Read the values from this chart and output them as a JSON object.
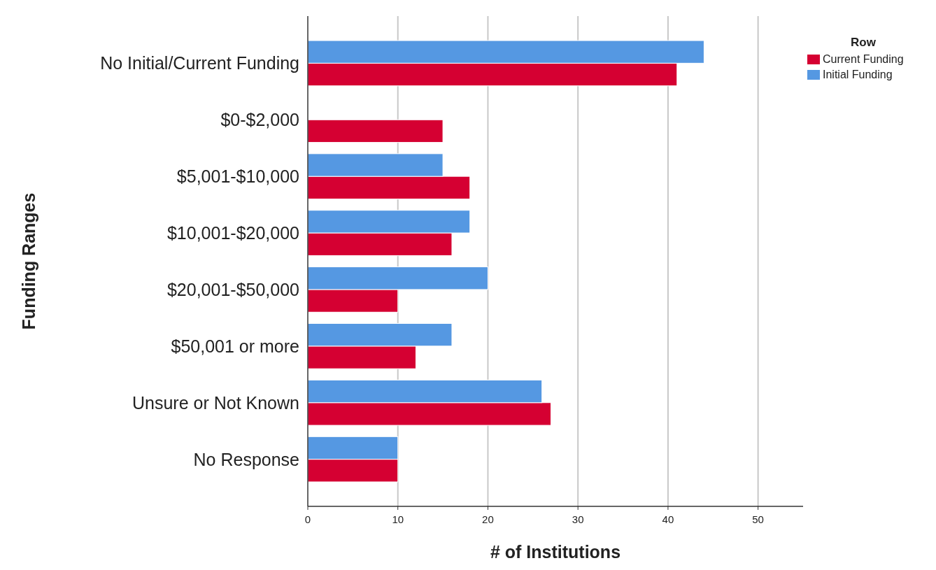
{
  "chart_data": {
    "type": "bar",
    "orientation": "horizontal",
    "xlabel": "# of Institutions",
    "ylabel": "Funding Ranges",
    "legend_title": "Row",
    "legend": "top right",
    "grid": "x",
    "categories": [
      "No Initial/Current Funding",
      "$0-$2,000",
      "$5,001-$10,000",
      "$10,001-$20,000",
      "$20,001-$50,000",
      "$50,001 or more",
      "Unsure or Not Known",
      "No Response"
    ],
    "series": [
      {
        "name": "Current Funding",
        "color": "#d50032",
        "values": [
          41,
          15,
          18,
          16,
          10,
          12,
          27,
          10
        ]
      },
      {
        "name": "Initial Funding",
        "color": "#5598e2",
        "values": [
          44,
          null,
          15,
          18,
          20,
          16,
          26,
          10
        ]
      }
    ],
    "xlim": [
      0,
      55
    ],
    "xticks": [
      0,
      10,
      20,
      30,
      40,
      50
    ]
  }
}
